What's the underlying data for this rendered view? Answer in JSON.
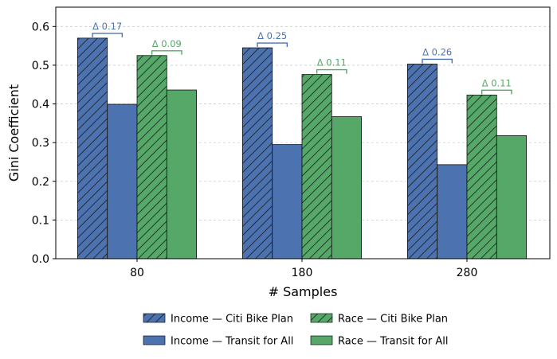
{
  "chart_data": {
    "type": "bar",
    "xlabel": "# Samples",
    "ylabel": "Gini Coefficient",
    "categories": [
      "80",
      "180",
      "280"
    ],
    "ylim": [
      0,
      0.65
    ],
    "yticks": [
      "0.0",
      "0.1",
      "0.2",
      "0.3",
      "0.4",
      "0.5",
      "0.6"
    ],
    "grid": "horizontal dashed",
    "legend_position": "bottom-center",
    "series": [
      {
        "name": "Income — Citi Bike Plan",
        "values": [
          0.57,
          0.545,
          0.503
        ],
        "color": "#4c72b0",
        "hatch": true
      },
      {
        "name": "Income — Transit for All",
        "values": [
          0.399,
          0.295,
          0.243
        ],
        "color": "#4c72b0",
        "hatch": false
      },
      {
        "name": "Race — Citi Bike Plan",
        "values": [
          0.525,
          0.476,
          0.423
        ],
        "color": "#55a868",
        "hatch": true
      },
      {
        "name": "Race — Transit for All",
        "values": [
          0.436,
          0.367,
          0.318
        ],
        "color": "#55a868",
        "hatch": false
      }
    ],
    "annotations": [
      {
        "text": "Δ 0.17",
        "category": "80",
        "group": "income",
        "color": "#4c72b0"
      },
      {
        "text": "Δ 0.09",
        "category": "80",
        "group": "race",
        "color": "#55a868"
      },
      {
        "text": "Δ 0.25",
        "category": "180",
        "group": "income",
        "color": "#4c72b0"
      },
      {
        "text": "Δ 0.11",
        "category": "180",
        "group": "race",
        "color": "#55a868"
      },
      {
        "text": "Δ 0.26",
        "category": "280",
        "group": "income",
        "color": "#4c72b0"
      },
      {
        "text": "Δ 0.11",
        "category": "280",
        "group": "race",
        "color": "#55a868"
      }
    ],
    "legend": [
      {
        "label": "Income — Citi Bike Plan",
        "color": "#4c72b0",
        "hatch": true
      },
      {
        "label": "Race   — Citi Bike Plan",
        "color": "#55a868",
        "hatch": true
      },
      {
        "label": "Income — Transit for All",
        "color": "#4c72b0",
        "hatch": false
      },
      {
        "label": "Race   — Transit for All",
        "color": "#55a868",
        "hatch": false
      }
    ]
  }
}
